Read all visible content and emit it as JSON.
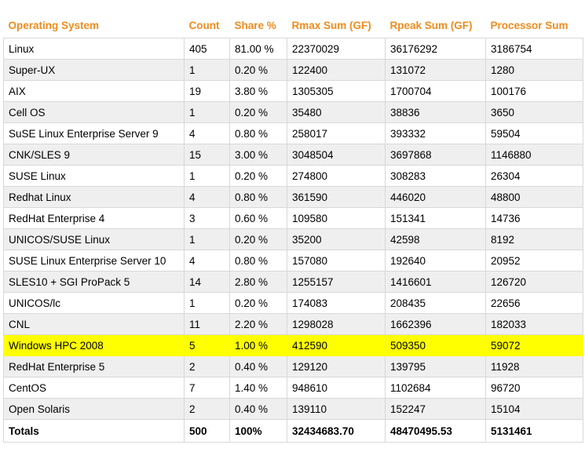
{
  "headers": [
    "Operating System",
    "Count",
    "Share %",
    "Rmax Sum (GF)",
    "Rpeak Sum (GF)",
    "Processor Sum"
  ],
  "rows": [
    [
      "Linux",
      "405",
      "81.00 %",
      "22370029",
      "36176292",
      "3186754"
    ],
    [
      "Super-UX",
      "1",
      "0.20 %",
      "122400",
      "131072",
      "1280"
    ],
    [
      "AIX",
      "19",
      "3.80 %",
      "1305305",
      "1700704",
      "100176"
    ],
    [
      "Cell OS",
      "1",
      "0.20 %",
      "35480",
      "38836",
      "3650"
    ],
    [
      "SuSE Linux Enterprise Server 9",
      "4",
      "0.80 %",
      "258017",
      "393332",
      "59504"
    ],
    [
      "CNK/SLES 9",
      "15",
      "3.00 %",
      "3048504",
      "3697868",
      "1146880"
    ],
    [
      "SUSE Linux",
      "1",
      "0.20 %",
      "274800",
      "308283",
      "26304"
    ],
    [
      "Redhat Linux",
      "4",
      "0.80 %",
      "361590",
      "446020",
      "48800"
    ],
    [
      "RedHat Enterprise 4",
      "3",
      "0.60 %",
      "109580",
      "151341",
      "14736"
    ],
    [
      "UNICOS/SUSE Linux",
      "1",
      "0.20 %",
      "35200",
      "42598",
      "8192"
    ],
    [
      "SUSE Linux Enterprise Server 10",
      "4",
      "0.80 %",
      "157080",
      "192640",
      "20952"
    ],
    [
      "SLES10 + SGI ProPack 5",
      "14",
      "2.80 %",
      "1255157",
      "1416601",
      "126720"
    ],
    [
      "UNICOS/lc",
      "1",
      "0.20 %",
      "174083",
      "208435",
      "22656"
    ],
    [
      "CNL",
      "11",
      "2.20 %",
      "1298028",
      "1662396",
      "182033"
    ],
    [
      "Windows HPC 2008",
      "5",
      "1.00 %",
      "412590",
      "509350",
      "59072"
    ],
    [
      "RedHat Enterprise 5",
      "2",
      "0.40 %",
      "129120",
      "139795",
      "11928"
    ],
    [
      "CentOS",
      "7",
      "1.40 %",
      "948610",
      "1102684",
      "96720"
    ],
    [
      "Open Solaris",
      "2",
      "0.40 %",
      "139110",
      "152247",
      "15104"
    ]
  ],
  "highlighted_row": "Windows HPC 2008",
  "totals": [
    "Totals",
    "500",
    "100%",
    "32434683.70",
    "48470495.53",
    "5131461"
  ],
  "colors": {
    "header_text": "#f08c1e",
    "highlight": "#ffff00",
    "stripe": "#efefef",
    "border": "#d8d8d8"
  }
}
